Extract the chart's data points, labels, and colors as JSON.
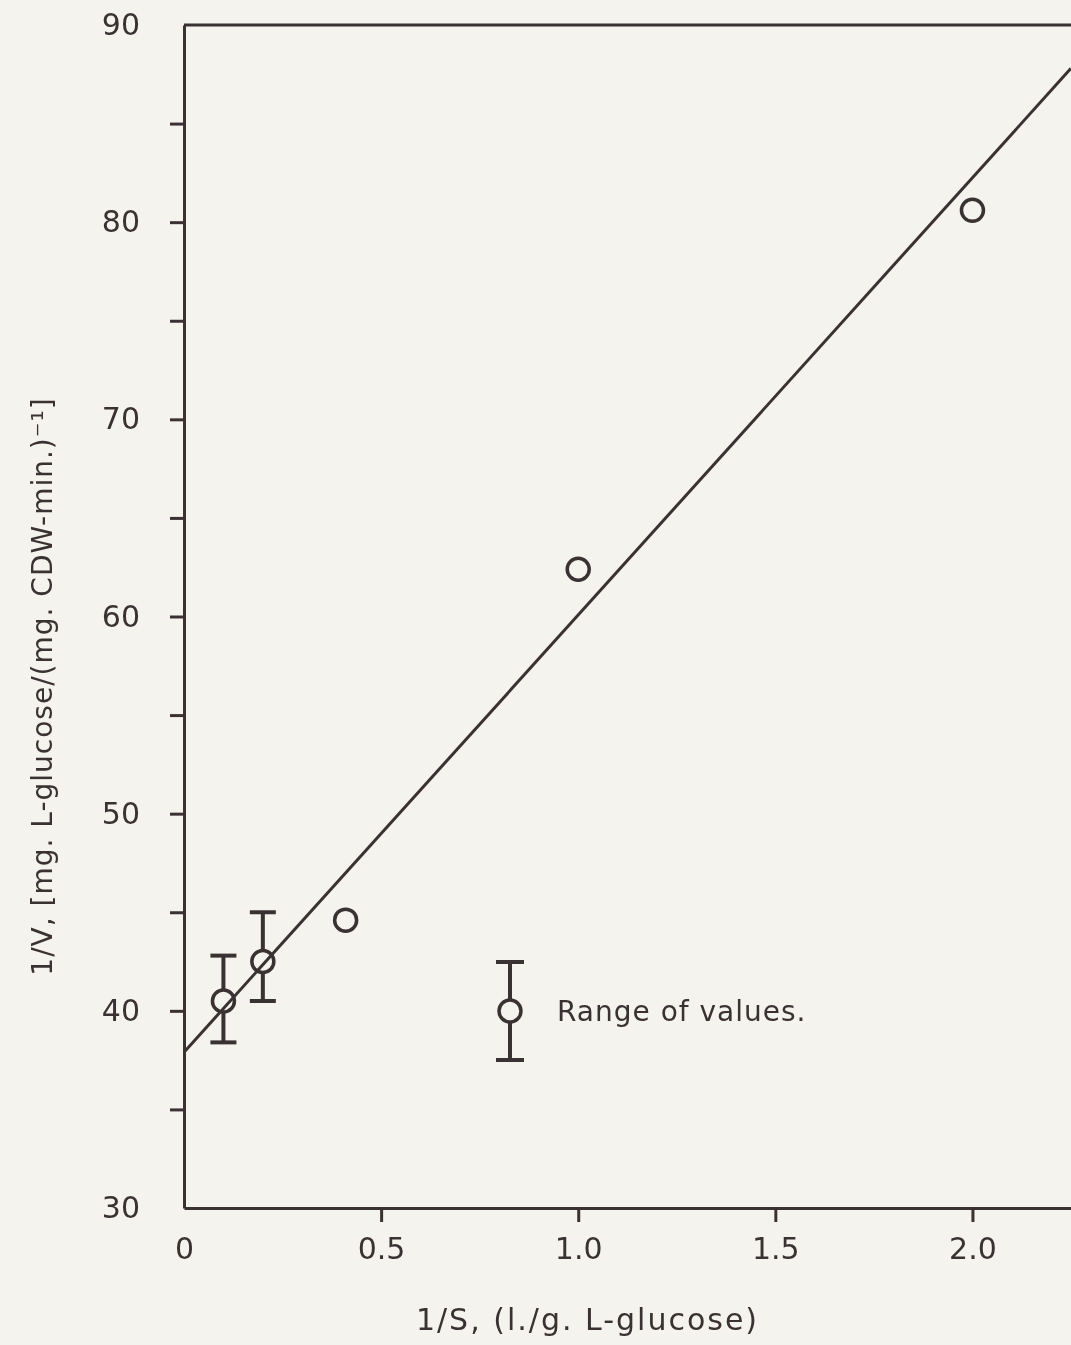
{
  "chart_data": {
    "type": "scatter",
    "xlabel": "1/S, (l./g. L-glucose)",
    "ylabel": "1/V, [mg. L-glucose/(mg. CDW-min.)⁻¹]",
    "xlim": [
      0,
      2.25
    ],
    "ylim": [
      30,
      90
    ],
    "xticks": [
      0,
      0.5,
      {
        "value": 1,
        "label": "1.0"
      },
      1.5,
      {
        "value": 2,
        "label": "2.0"
      }
    ],
    "yticks": [
      30,
      {
        "value": 35,
        "label": null
      },
      40,
      {
        "value": 45,
        "label": null
      },
      50,
      {
        "value": 55,
        "label": null
      },
      60,
      {
        "value": 65,
        "label": null
      },
      70,
      {
        "value": 75,
        "label": null
      },
      80,
      {
        "value": 85,
        "label": null
      },
      90
    ],
    "grid": false,
    "legend": "right",
    "series": [
      {
        "name": "Range of values.",
        "color": "#3a3232",
        "marker": "circle",
        "x": [
          0.1,
          0.2,
          0.41,
          1.0,
          2.0
        ],
        "values": [
          40.5,
          42.5,
          44.6,
          62.4,
          80.6
        ],
        "errors": [
          [
            38.4,
            42.8
          ],
          [
            40.5,
            45.0
          ],
          null,
          null,
          null
        ]
      },
      {
        "type": "line",
        "color": "#3a3232",
        "marker": "none",
        "line_style": "solid",
        "x": [
          0,
          2.25
        ],
        "values": [
          37.9,
          87.8
        ]
      }
    ]
  }
}
